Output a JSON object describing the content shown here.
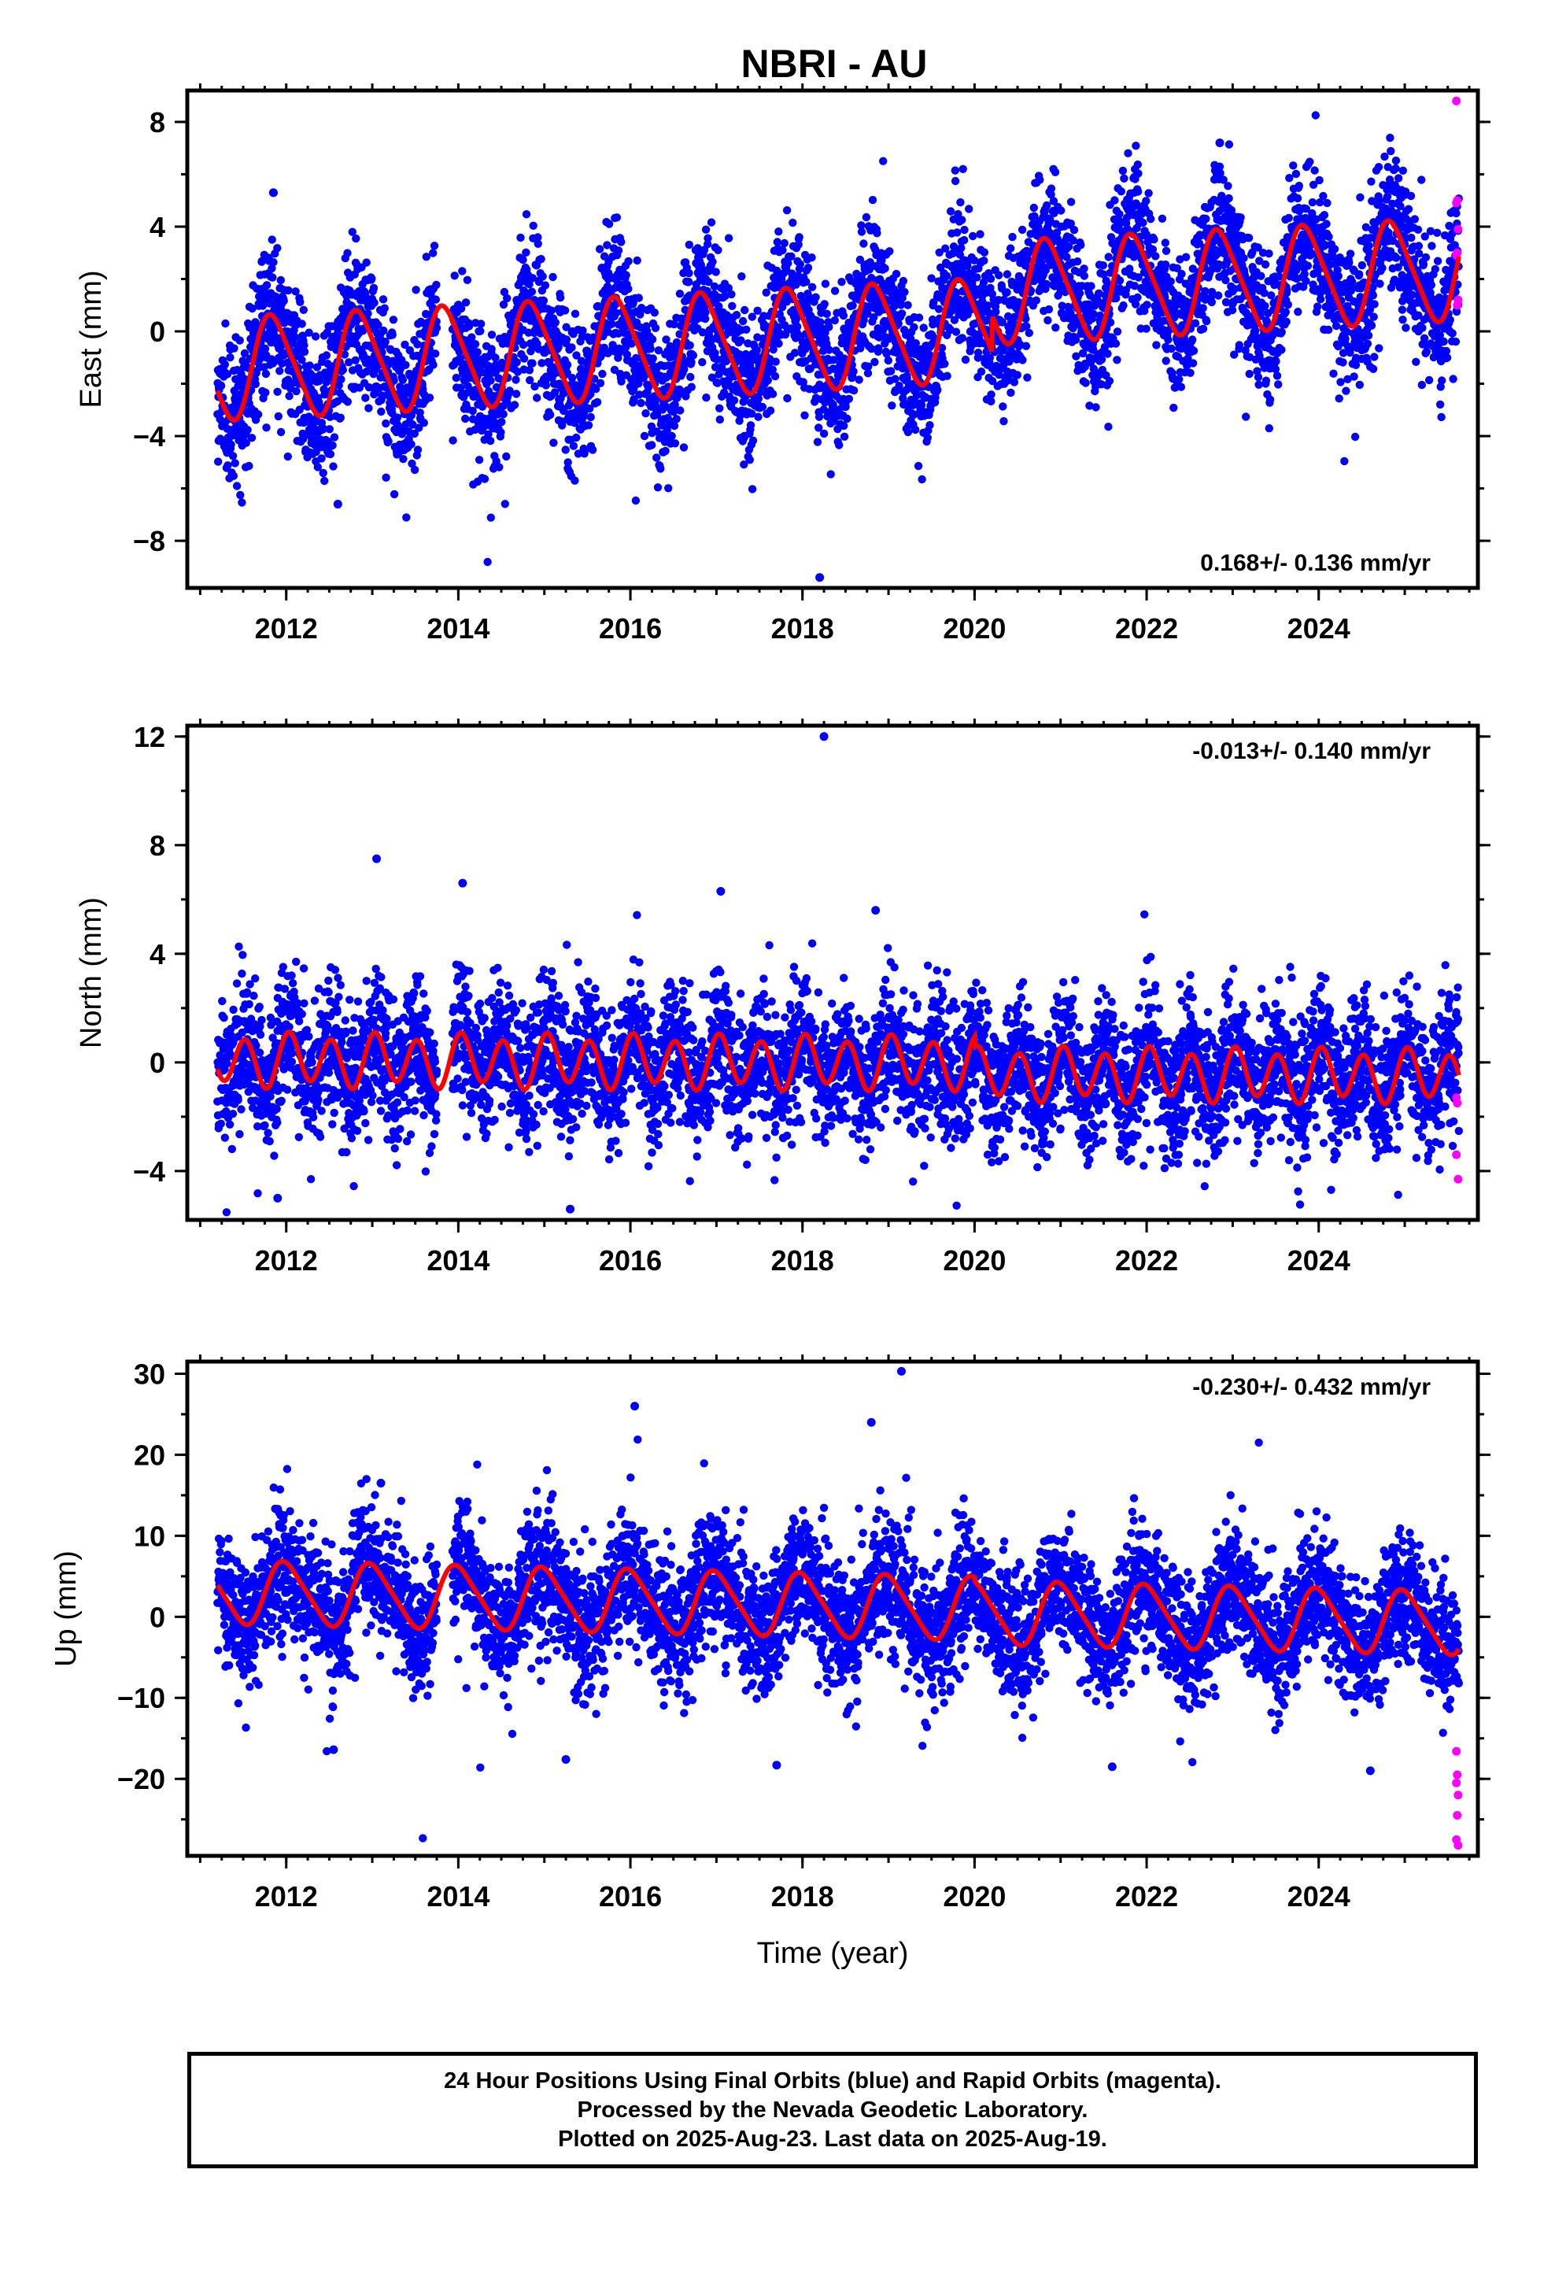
{
  "title": "NBRI - AU",
  "colors": {
    "final_orbits": "#0000ff",
    "rapid_orbits": "#ff00ff",
    "model_fit": "#ff0000",
    "axes": "#000000"
  },
  "caption": {
    "line1": "24 Hour Positions Using Final Orbits (blue) and Rapid Orbits (magenta).",
    "line2": "Processed by the Nevada Geodetic Laboratory.",
    "line3": "Plotted on 2025-Aug-23. Last data on 2025-Aug-19."
  },
  "chart_data": [
    {
      "type": "scatter",
      "title": "NBRI - AU",
      "ylabel": "East (mm)",
      "xlabel": "",
      "xlim": [
        2010.85,
        2025.85
      ],
      "ylim": [
        -9.8,
        9.2
      ],
      "xticks": [
        2012,
        2014,
        2016,
        2018,
        2020,
        2022,
        2024
      ],
      "yticks": [
        -8,
        -4,
        0,
        4,
        8
      ],
      "rate_label": "0.168+/- 0.136 mm/yr",
      "rate_position": "bottom-right",
      "data_range": [
        2011.2,
        2025.63
      ],
      "model": {
        "offset": -0.3,
        "trend": 0.168,
        "annual": 1.9,
        "phase": 2011.6,
        "semiannual": 0.3,
        "step_year": 2020.2,
        "step": 1.4
      },
      "noise": {
        "scatter": 1.35
      },
      "outliers": [
        {
          "x": 2018.2,
          "y": -9.4
        },
        {
          "x": 2022.85,
          "y": 7.2
        },
        {
          "x": 2011.85,
          "y": 5.3
        },
        {
          "x": 2012.6,
          "y": -6.6
        }
      ],
      "rapid_points": [
        {
          "x": 2025.6,
          "y": 8.8
        },
        {
          "x": 2025.61,
          "y": 5.0
        },
        {
          "x": 2025.6,
          "y": 4.9
        },
        {
          "x": 2025.62,
          "y": 3.9
        },
        {
          "x": 2025.61,
          "y": 3.0
        },
        {
          "x": 2025.6,
          "y": 2.9
        },
        {
          "x": 2025.62,
          "y": 1.2
        },
        {
          "x": 2025.61,
          "y": 1.0
        }
      ]
    },
    {
      "type": "scatter",
      "ylabel": "North (mm)",
      "xlabel": "",
      "xlim": [
        2010.85,
        2025.85
      ],
      "ylim": [
        -5.8,
        12.4
      ],
      "xticks": [
        2012,
        2014,
        2016,
        2018,
        2020,
        2022,
        2024
      ],
      "yticks": [
        -4,
        0,
        4,
        8,
        12
      ],
      "rate_label": "-0.013+/- 0.140 mm/yr",
      "rate_position": "top-right",
      "data_range": [
        2011.2,
        2025.63
      ],
      "model": {
        "offset": 0.0,
        "trend": -0.013,
        "annual": 0.2,
        "phase": 2011.9,
        "semiannual": 0.9,
        "step_year": 2020.0,
        "step": -0.4
      },
      "noise": {
        "scatter": 1.25
      },
      "outliers": [
        {
          "x": 2018.25,
          "y": 12.0
        },
        {
          "x": 2013.05,
          "y": 7.5
        },
        {
          "x": 2014.05,
          "y": 6.6
        },
        {
          "x": 2017.05,
          "y": 6.3
        },
        {
          "x": 2018.85,
          "y": 5.6
        },
        {
          "x": 2015.3,
          "y": -5.4
        },
        {
          "x": 2011.9,
          "y": -5.0
        }
      ],
      "rapid_points": [
        {
          "x": 2025.6,
          "y": -1.3
        },
        {
          "x": 2025.61,
          "y": -1.5
        },
        {
          "x": 2025.6,
          "y": -3.4
        },
        {
          "x": 2025.62,
          "y": -4.3
        }
      ]
    },
    {
      "type": "scatter",
      "ylabel": "Up (mm)",
      "xlabel": "Time (year)",
      "xlim": [
        2010.85,
        2025.85
      ],
      "ylim": [
        -29.5,
        31.5
      ],
      "xticks": [
        2012,
        2014,
        2016,
        2018,
        2020,
        2022,
        2024
      ],
      "yticks": [
        -20,
        -10,
        0,
        10,
        20,
        30
      ],
      "rate_label": "-0.230+/- 0.432 mm/yr",
      "rate_position": "top-right",
      "data_range": [
        2011.2,
        2025.63
      ],
      "model": {
        "offset": 1.5,
        "trend": -0.23,
        "annual": 3.8,
        "phase": 2011.75,
        "semiannual": 0.6,
        "step_year": 2020.0,
        "step": -0.5
      },
      "noise": {
        "scatter": 4.0
      },
      "outliers": [
        {
          "x": 2019.15,
          "y": 30.3
        },
        {
          "x": 2016.05,
          "y": 26.0
        },
        {
          "x": 2018.8,
          "y": 24.0
        },
        {
          "x": 2013.1,
          "y": 16.5
        },
        {
          "x": 2017.7,
          "y": -18.3
        },
        {
          "x": 2015.25,
          "y": -17.6
        },
        {
          "x": 2012.55,
          "y": -16.4
        },
        {
          "x": 2021.6,
          "y": -18.5
        },
        {
          "x": 2024.6,
          "y": -19.0
        }
      ],
      "rapid_points": [
        {
          "x": 2025.6,
          "y": -16.6
        },
        {
          "x": 2025.61,
          "y": -19.5
        },
        {
          "x": 2025.6,
          "y": -20.5
        },
        {
          "x": 2025.62,
          "y": -22.0
        },
        {
          "x": 2025.61,
          "y": -24.5
        },
        {
          "x": 2025.6,
          "y": -27.5
        },
        {
          "x": 2025.62,
          "y": -28.2
        }
      ]
    }
  ]
}
